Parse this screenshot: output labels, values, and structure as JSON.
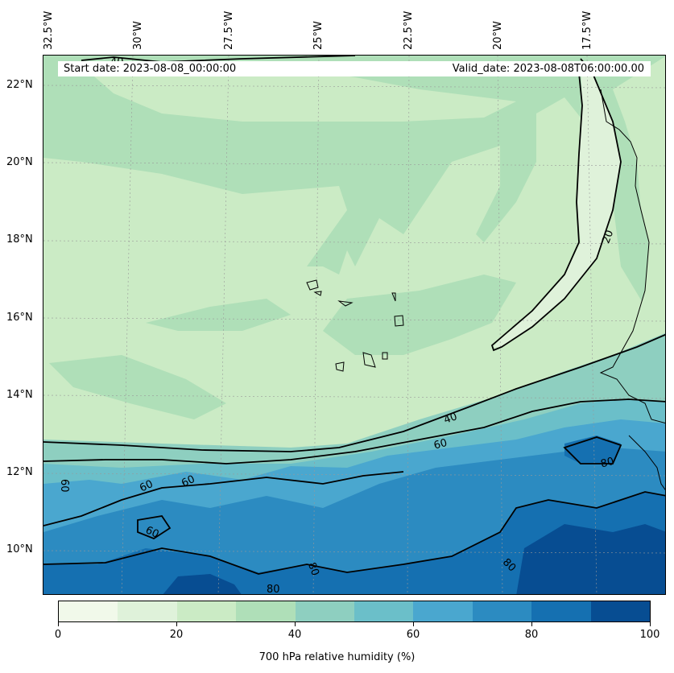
{
  "banner": {
    "start_date": "Start date: 2023-08-08_00:00:00",
    "valid_date": "Valid_date: 2023-08-08T06:00:00.00"
  },
  "longitude_labels": [
    "32.5°W",
    "30°W",
    "27.5°W",
    "25°W",
    "22.5°W",
    "20°W",
    "17.5°W"
  ],
  "latitude_labels": [
    "22°N",
    "20°N",
    "18°N",
    "16°N",
    "14°N",
    "12°N",
    "10°N"
  ],
  "contour_labels": [
    "20",
    "40",
    "60",
    "60",
    "60",
    "60",
    "60",
    "80",
    "80",
    "80",
    "80",
    "40"
  ],
  "colorbar": {
    "label": "700 hPa relative humidity (%)",
    "ticks": [
      "0",
      "20",
      "40",
      "60",
      "80",
      "100"
    ],
    "colors": [
      "#f1f9ea",
      "#dff2da",
      "#cbebc5",
      "#afdfb8",
      "#8ecfc0",
      "#6bbfc9",
      "#4aa7cf",
      "#2c8bc1",
      "#1570b1",
      "#074d92"
    ]
  },
  "field": {
    "variable": "700 hPa relative humidity",
    "units": "%",
    "lon_range": [
      -32.5,
      -15.5
    ],
    "lat_range": [
      8.8,
      22.8
    ]
  }
}
